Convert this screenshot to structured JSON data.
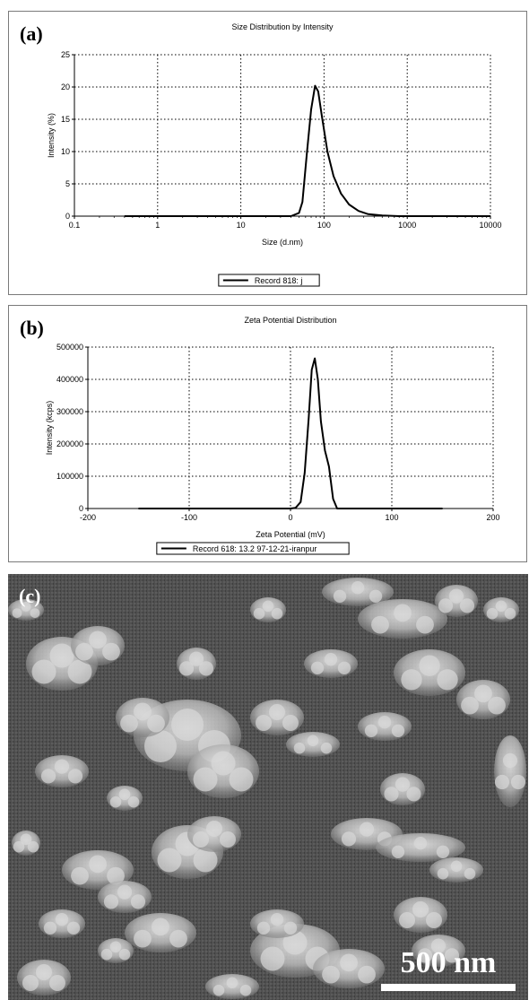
{
  "panel_a": {
    "letter": "(a)"
  },
  "panel_b": {
    "letter": "(b)"
  },
  "panel_c": {
    "letter": "(c)",
    "scale_label": "500 nm"
  },
  "chart_data": [
    {
      "type": "line",
      "title": "Size Distribution by Intensity",
      "xlabel": "Size (d.nm)",
      "ylabel": "Intensity (%)",
      "xscale": "log",
      "xlim": [
        0.1,
        10000
      ],
      "ylim": [
        0,
        25
      ],
      "xticks": [
        0.1,
        1,
        10,
        100,
        1000,
        10000
      ],
      "xtick_labels": [
        "0.1",
        "1",
        "10",
        "100",
        "1000",
        "10000"
      ],
      "yticks": [
        0,
        5,
        10,
        15,
        20,
        25
      ],
      "ytick_labels": [
        "0",
        "5",
        "10",
        "15",
        "20",
        "25"
      ],
      "grid": true,
      "legend_position": "bottom-center",
      "series": [
        {
          "name": "Record 818: j",
          "color": "#000000",
          "x": [
            0.4,
            1,
            10,
            40,
            50,
            55,
            62,
            70,
            78,
            85,
            95,
            110,
            130,
            160,
            200,
            260,
            340,
            500,
            800,
            1500,
            10000
          ],
          "y": [
            0,
            0,
            0,
            0,
            0.5,
            2.2,
            9.5,
            16.5,
            20.2,
            19.3,
            15.2,
            10.0,
            6.2,
            3.5,
            1.8,
            0.8,
            0.3,
            0.1,
            0,
            0,
            0
          ]
        }
      ]
    },
    {
      "type": "line",
      "title": "Zeta Potential Distribution",
      "xlabel": "Zeta Potential (mV)",
      "ylabel": "Intensity (kcps)",
      "xlim": [
        -200,
        200
      ],
      "ylim": [
        0,
        500000
      ],
      "xticks": [
        -200,
        -100,
        0,
        100,
        200
      ],
      "xtick_labels": [
        "-200",
        "-100",
        "0",
        "100",
        "200"
      ],
      "yticks": [
        0,
        100000,
        200000,
        300000,
        400000,
        500000
      ],
      "ytick_labels": [
        "0",
        "100000",
        "200000",
        "300000",
        "400000",
        "500000"
      ],
      "grid": true,
      "legend_position": "bottom-center",
      "series": [
        {
          "name": "Record 618: 13.2 97-12-21-iranpur",
          "color": "#000000",
          "x": [
            -150,
            0,
            5,
            10,
            14,
            18,
            21,
            24,
            27,
            30,
            34,
            38,
            42,
            46,
            150
          ],
          "y": [
            0,
            0,
            2000,
            20000,
            110000,
            280000,
            430000,
            465000,
            400000,
            270000,
            180000,
            130000,
            30000,
            0,
            0
          ]
        }
      ]
    }
  ]
}
